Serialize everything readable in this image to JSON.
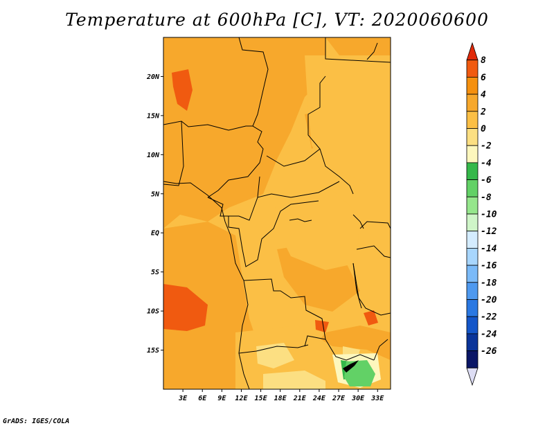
{
  "title": "Temperature at 600hPa [C], VT: 2020060600",
  "credit": "GrADS: IGES/COLA",
  "map": {
    "lon_range": [
      0,
      35
    ],
    "lat_range": [
      -20,
      25
    ],
    "lat_ticks": [
      "20N",
      "15N",
      "10N",
      "5N",
      "EQ",
      "5S",
      "10S",
      "15S"
    ],
    "lat_tick_values": [
      20,
      15,
      10,
      5,
      0,
      -5,
      -10,
      -15
    ],
    "lon_ticks": [
      "3E",
      "6E",
      "9E",
      "12E",
      "15E",
      "18E",
      "21E",
      "24E",
      "27E",
      "30E",
      "33E"
    ],
    "lon_tick_values": [
      3,
      6,
      9,
      12,
      15,
      18,
      21,
      24,
      27,
      30,
      33
    ]
  },
  "colorbar": {
    "labels": [
      "8",
      "6",
      "4",
      "2",
      "0",
      "-2",
      "-4",
      "-6",
      "-8",
      "-10",
      "-12",
      "-14",
      "-16",
      "-18",
      "-20",
      "-22",
      "-24",
      "-26"
    ],
    "colors": [
      "#e12a0a",
      "#f05a10",
      "#f5900f",
      "#f7a82c",
      "#fbbf45",
      "#fcdf82",
      "#fdf7bd",
      "#35b84a",
      "#62d166",
      "#95e68c",
      "#cff5c8",
      "#d4ecff",
      "#a8d6fd",
      "#7bbaf8",
      "#4e99ef",
      "#2a78e2",
      "#1456c9",
      "#0a3499",
      "#0a1666",
      "#ddddf4"
    ]
  },
  "chart_data": {
    "type": "heatmap",
    "title": "Temperature at 600hPa [C], VT: 2020060600",
    "variable": "Temperature at 600hPa",
    "units": "C",
    "valid_time": "2020060600",
    "lon_range": [
      0,
      35
    ],
    "lat_range": [
      -20,
      25
    ],
    "color_levels": [
      8,
      6,
      4,
      2,
      0,
      -2,
      -4,
      -6,
      -8,
      -10,
      -12,
      -14,
      -16,
      -18,
      -20,
      -22,
      -24,
      -26
    ],
    "dominant_range": [
      2,
      4
    ],
    "warm_areas_4_to_6": [
      "northwest near 20N 2E-4E",
      "southwest coast 8S-12S",
      "around 10S 25E"
    ],
    "cool_areas_0_to_-2": [
      "southern interior 14S-20S 12E-27E"
    ],
    "coldest_area_-4_to_-8": [
      "around 17S-20S 27E-31E"
    ]
  }
}
